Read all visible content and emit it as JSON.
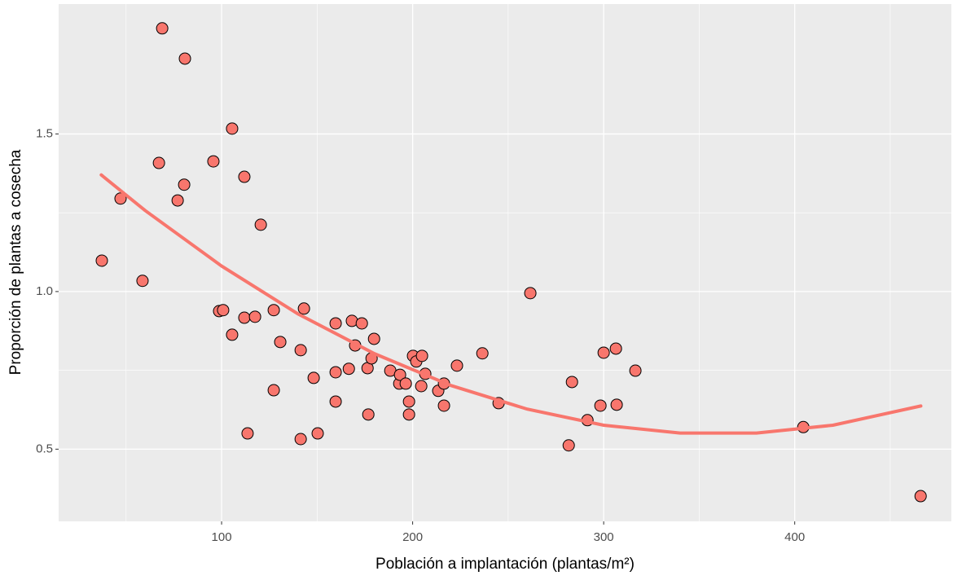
{
  "chart_data": {
    "type": "scatter",
    "x_label": "Población a implantación (plantas/m²)",
    "y_label": "Proporción de plantas a cosecha",
    "xlim": [
      14.7,
      482
    ],
    "ylim": [
      0.271,
      1.912
    ],
    "xticks": [
      100,
      200,
      300,
      400
    ],
    "yticks": [
      0.5,
      {
        "value": 1,
        "label": "1.0"
      },
      1.5
    ],
    "x_minor_grid": [
      50,
      150,
      250,
      350,
      450
    ],
    "y_minor_grid": [
      0.75,
      1.25
    ],
    "grid": true,
    "series": [
      {
        "type": "scatter",
        "color": "#f8766d",
        "x": [
          37.3,
          47.1,
          58.6,
          68.9,
          80.8,
          67.2,
          77.0,
          80.4,
          95.7,
          105.5,
          111.9,
          120.5,
          98.7,
          100.8,
          105.5,
          111.9,
          117.5,
          113.6,
          127.3,
          127.3,
          130.7,
          141.4,
          143.1,
          141.4,
          148.2,
          150.3,
          159.7,
          159.7,
          159.7,
          166.6,
          168.2,
          169.9,
          173.4,
          176.4,
          176.8,
          178.5,
          179.8,
          188.3,
          193.0,
          193.4,
          196.4,
          198.1,
          198.1,
          200.2,
          201.9,
          204.9,
          204.5,
          206.6,
          213.4,
          216.4,
          216.4,
          223.2,
          236.5,
          245.0,
          261.6,
          281.7,
          283.4,
          291.5,
          298.3,
          300.0,
          306.4,
          306.8,
          316.6,
          404.5,
          465.9
        ],
        "values": [
          1.098,
          1.295,
          1.034,
          1.835,
          1.739,
          1.408,
          1.289,
          1.339,
          1.413,
          1.517,
          1.364,
          1.212,
          0.938,
          0.941,
          0.863,
          0.917,
          0.92,
          0.55,
          0.941,
          0.687,
          0.84,
          0.814,
          0.946,
          0.532,
          0.726,
          0.55,
          0.899,
          0.744,
          0.651,
          0.755,
          0.907,
          0.829,
          0.899,
          0.757,
          0.61,
          0.788,
          0.85,
          0.749,
          0.708,
          0.736,
          0.708,
          0.651,
          0.61,
          0.796,
          0.778,
          0.796,
          0.7,
          0.739,
          0.685,
          0.708,
          0.638,
          0.765,
          0.804,
          0.646,
          0.995,
          0.512,
          0.713,
          0.592,
          0.638,
          0.806,
          0.819,
          0.641,
          0.749,
          0.57,
          0.351
        ]
      },
      {
        "type": "line",
        "color": "#f8766d",
        "x": [
          37,
          60,
          100,
          140,
          180,
          220,
          260,
          300,
          340,
          380,
          420,
          466
        ],
        "values": [
          1.37,
          1.257,
          1.081,
          0.929,
          0.803,
          0.702,
          0.627,
          0.576,
          0.551,
          0.551,
          0.576,
          0.637
        ]
      }
    ]
  }
}
